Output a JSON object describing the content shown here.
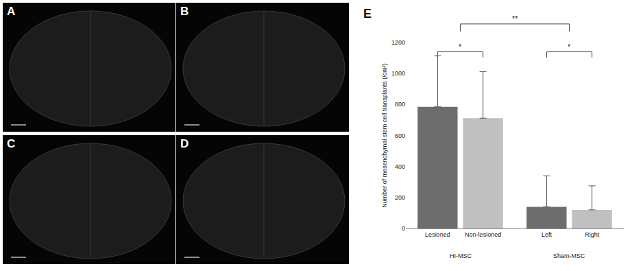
{
  "image_panels": [
    "A",
    "B",
    "C",
    "D"
  ],
  "chart_data": {
    "type": "bar",
    "panel_label": "E",
    "y_label": "Number of mesenchymal stem cell transplants (/cm²)",
    "categories": [
      "Lesioned",
      "Non-lesioned",
      "Left",
      "Right"
    ],
    "groups": [
      {
        "label": "HI-MSC",
        "members": [
          0,
          1
        ]
      },
      {
        "label": "Sham-MSC",
        "members": [
          2,
          3
        ]
      }
    ],
    "values": [
      785,
      712,
      140,
      120
    ],
    "errors": [
      330,
      300,
      200,
      155
    ],
    "colors": [
      "#6d6d6d",
      "#c0c0c0",
      "#6d6d6d",
      "#c0c0c0"
    ],
    "ylim": [
      0,
      1200
    ],
    "yticks": [
      0,
      200,
      400,
      600,
      800,
      1000,
      1200
    ],
    "grid": false,
    "significance": [
      {
        "between": [
          0,
          1
        ],
        "label": "*"
      },
      {
        "between": [
          2,
          3
        ],
        "label": "*"
      },
      {
        "between_groups": [
          0,
          1
        ],
        "label": "**"
      }
    ]
  }
}
